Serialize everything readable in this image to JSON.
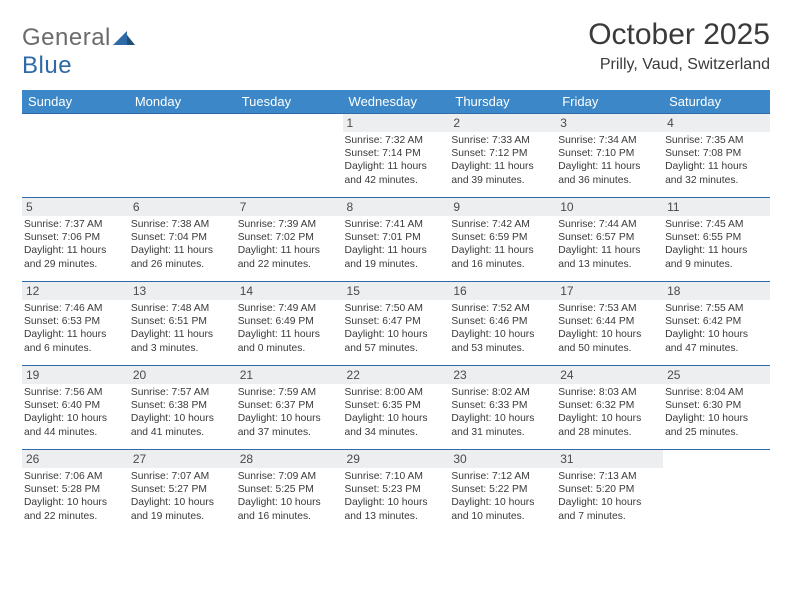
{
  "logo": {
    "word1": "General",
    "word2": "Blue"
  },
  "title": "October 2025",
  "location": "Prilly, Vaud, Switzerland",
  "colors": {
    "header_bg": "#3c87c7",
    "header_text": "#ffffff",
    "day_bar_bg": "#eceef0",
    "cell_border": "#2f6aa8",
    "text": "#3a3a3a",
    "logo_gray": "#6b6b6b",
    "logo_blue": "#2f6aa8"
  },
  "typography": {
    "title_fontsize": 30,
    "location_fontsize": 16,
    "dayhead_fontsize": 13,
    "daynum_fontsize": 12,
    "info_fontsize": 10.3
  },
  "day_names": [
    "Sunday",
    "Monday",
    "Tuesday",
    "Wednesday",
    "Thursday",
    "Friday",
    "Saturday"
  ],
  "weeks": [
    [
      null,
      null,
      null,
      {
        "n": "1",
        "sunrise": "7:32 AM",
        "sunset": "7:14 PM",
        "daylight": "11 hours and 42 minutes."
      },
      {
        "n": "2",
        "sunrise": "7:33 AM",
        "sunset": "7:12 PM",
        "daylight": "11 hours and 39 minutes."
      },
      {
        "n": "3",
        "sunrise": "7:34 AM",
        "sunset": "7:10 PM",
        "daylight": "11 hours and 36 minutes."
      },
      {
        "n": "4",
        "sunrise": "7:35 AM",
        "sunset": "7:08 PM",
        "daylight": "11 hours and 32 minutes."
      }
    ],
    [
      {
        "n": "5",
        "sunrise": "7:37 AM",
        "sunset": "7:06 PM",
        "daylight": "11 hours and 29 minutes."
      },
      {
        "n": "6",
        "sunrise": "7:38 AM",
        "sunset": "7:04 PM",
        "daylight": "11 hours and 26 minutes."
      },
      {
        "n": "7",
        "sunrise": "7:39 AM",
        "sunset": "7:02 PM",
        "daylight": "11 hours and 22 minutes."
      },
      {
        "n": "8",
        "sunrise": "7:41 AM",
        "sunset": "7:01 PM",
        "daylight": "11 hours and 19 minutes."
      },
      {
        "n": "9",
        "sunrise": "7:42 AM",
        "sunset": "6:59 PM",
        "daylight": "11 hours and 16 minutes."
      },
      {
        "n": "10",
        "sunrise": "7:44 AM",
        "sunset": "6:57 PM",
        "daylight": "11 hours and 13 minutes."
      },
      {
        "n": "11",
        "sunrise": "7:45 AM",
        "sunset": "6:55 PM",
        "daylight": "11 hours and 9 minutes."
      }
    ],
    [
      {
        "n": "12",
        "sunrise": "7:46 AM",
        "sunset": "6:53 PM",
        "daylight": "11 hours and 6 minutes."
      },
      {
        "n": "13",
        "sunrise": "7:48 AM",
        "sunset": "6:51 PM",
        "daylight": "11 hours and 3 minutes."
      },
      {
        "n": "14",
        "sunrise": "7:49 AM",
        "sunset": "6:49 PM",
        "daylight": "11 hours and 0 minutes."
      },
      {
        "n": "15",
        "sunrise": "7:50 AM",
        "sunset": "6:47 PM",
        "daylight": "10 hours and 57 minutes."
      },
      {
        "n": "16",
        "sunrise": "7:52 AM",
        "sunset": "6:46 PM",
        "daylight": "10 hours and 53 minutes."
      },
      {
        "n": "17",
        "sunrise": "7:53 AM",
        "sunset": "6:44 PM",
        "daylight": "10 hours and 50 minutes."
      },
      {
        "n": "18",
        "sunrise": "7:55 AM",
        "sunset": "6:42 PM",
        "daylight": "10 hours and 47 minutes."
      }
    ],
    [
      {
        "n": "19",
        "sunrise": "7:56 AM",
        "sunset": "6:40 PM",
        "daylight": "10 hours and 44 minutes."
      },
      {
        "n": "20",
        "sunrise": "7:57 AM",
        "sunset": "6:38 PM",
        "daylight": "10 hours and 41 minutes."
      },
      {
        "n": "21",
        "sunrise": "7:59 AM",
        "sunset": "6:37 PM",
        "daylight": "10 hours and 37 minutes."
      },
      {
        "n": "22",
        "sunrise": "8:00 AM",
        "sunset": "6:35 PM",
        "daylight": "10 hours and 34 minutes."
      },
      {
        "n": "23",
        "sunrise": "8:02 AM",
        "sunset": "6:33 PM",
        "daylight": "10 hours and 31 minutes."
      },
      {
        "n": "24",
        "sunrise": "8:03 AM",
        "sunset": "6:32 PM",
        "daylight": "10 hours and 28 minutes."
      },
      {
        "n": "25",
        "sunrise": "8:04 AM",
        "sunset": "6:30 PM",
        "daylight": "10 hours and 25 minutes."
      }
    ],
    [
      {
        "n": "26",
        "sunrise": "7:06 AM",
        "sunset": "5:28 PM",
        "daylight": "10 hours and 22 minutes."
      },
      {
        "n": "27",
        "sunrise": "7:07 AM",
        "sunset": "5:27 PM",
        "daylight": "10 hours and 19 minutes."
      },
      {
        "n": "28",
        "sunrise": "7:09 AM",
        "sunset": "5:25 PM",
        "daylight": "10 hours and 16 minutes."
      },
      {
        "n": "29",
        "sunrise": "7:10 AM",
        "sunset": "5:23 PM",
        "daylight": "10 hours and 13 minutes."
      },
      {
        "n": "30",
        "sunrise": "7:12 AM",
        "sunset": "5:22 PM",
        "daylight": "10 hours and 10 minutes."
      },
      {
        "n": "31",
        "sunrise": "7:13 AM",
        "sunset": "5:20 PM",
        "daylight": "10 hours and 7 minutes."
      },
      null
    ]
  ],
  "labels": {
    "sunrise": "Sunrise:",
    "sunset": "Sunset:",
    "daylight": "Daylight:"
  }
}
